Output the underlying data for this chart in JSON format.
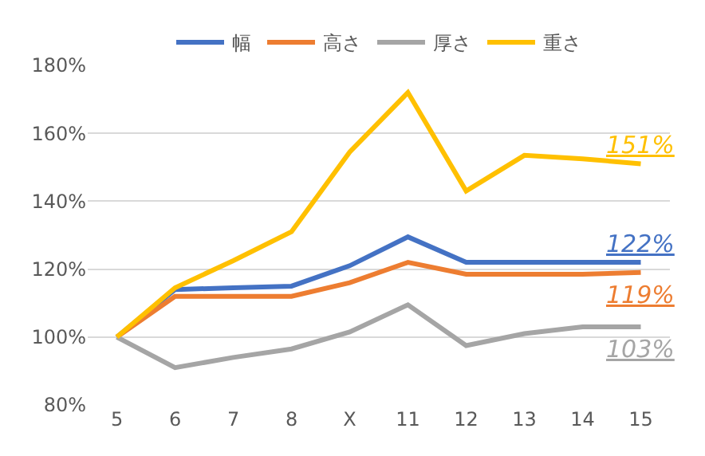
{
  "chart_data": {
    "type": "line",
    "categories": [
      "5",
      "6",
      "7",
      "8",
      "X",
      "11",
      "12",
      "13",
      "14",
      "15"
    ],
    "series": [
      {
        "name": "幅",
        "color": "#4472c4",
        "values": [
          100,
          114,
          114.5,
          115,
          121,
          129.5,
          122,
          122,
          122,
          122
        ]
      },
      {
        "name": "高さ",
        "color": "#ed7d31",
        "values": [
          100,
          112,
          112,
          112,
          116,
          122,
          118.5,
          118.5,
          118.5,
          119
        ]
      },
      {
        "name": "厚さ",
        "color": "#a5a5a5",
        "values": [
          100,
          91,
          94,
          96.5,
          101.5,
          109.5,
          97.5,
          101,
          103,
          103
        ]
      },
      {
        "name": "重さ",
        "color": "#ffc000",
        "values": [
          100,
          114.5,
          122.5,
          131,
          154.5,
          172,
          143,
          153.5,
          152.5,
          151
        ]
      }
    ],
    "annotations": [
      {
        "text": "122%",
        "x": "15",
        "y": 122
      },
      {
        "text": "119%",
        "x": "15",
        "y": 119
      },
      {
        "text": "103%",
        "x": "15",
        "y": 103
      },
      {
        "text": "151%",
        "x": "15",
        "y": 151
      }
    ],
    "ylim": [
      80,
      180
    ],
    "yticks": [
      {
        "value": 80,
        "label": "80%"
      },
      {
        "value": 100,
        "label": "100%"
      },
      {
        "value": 120,
        "label": "120%"
      },
      {
        "value": 140,
        "label": "140%"
      },
      {
        "value": 160,
        "label": "160%"
      },
      {
        "value": 180,
        "label": "180%"
      }
    ],
    "grid": "y",
    "legend": "top",
    "marker": "none",
    "line_style": "solid"
  }
}
